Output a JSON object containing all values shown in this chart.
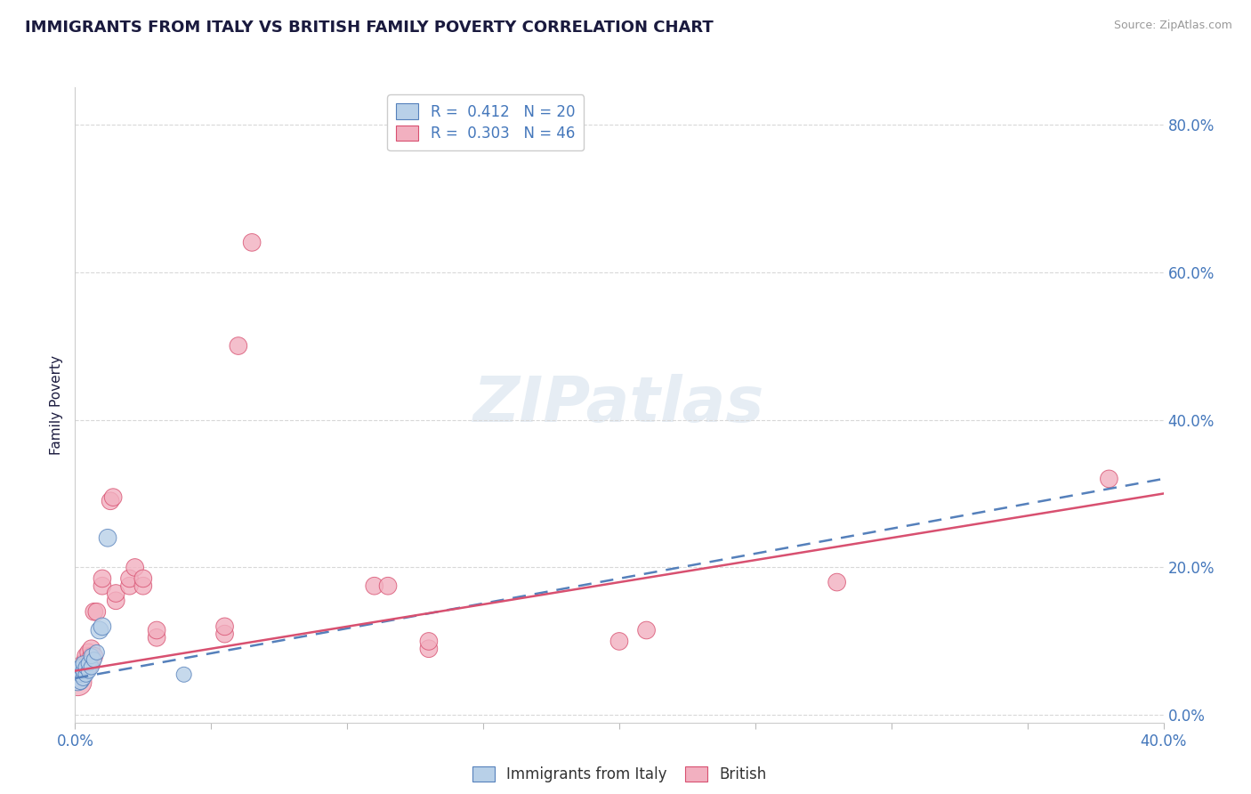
{
  "title": "IMMIGRANTS FROM ITALY VS BRITISH FAMILY POVERTY CORRELATION CHART",
  "source": "Source: ZipAtlas.com",
  "ylabel": "Family Poverty",
  "legend_blue_r": "R =  0.412",
  "legend_blue_n": "N = 20",
  "legend_pink_r": "R =  0.303",
  "legend_pink_n": "N = 46",
  "blue_color": "#b8d0e8",
  "pink_color": "#f2b0c0",
  "blue_line_color": "#5580bb",
  "pink_line_color": "#d85070",
  "watermark": "ZIPatlas",
  "blue_scatter": [
    [
      0.001,
      0.05
    ],
    [
      0.001,
      0.06
    ],
    [
      0.002,
      0.045
    ],
    [
      0.002,
      0.055
    ],
    [
      0.002,
      0.065
    ],
    [
      0.003,
      0.05
    ],
    [
      0.003,
      0.06
    ],
    [
      0.003,
      0.07
    ],
    [
      0.004,
      0.055
    ],
    [
      0.004,
      0.065
    ],
    [
      0.005,
      0.06
    ],
    [
      0.005,
      0.07
    ],
    [
      0.006,
      0.065
    ],
    [
      0.006,
      0.08
    ],
    [
      0.007,
      0.075
    ],
    [
      0.008,
      0.085
    ],
    [
      0.009,
      0.115
    ],
    [
      0.01,
      0.12
    ],
    [
      0.012,
      0.24
    ],
    [
      0.04,
      0.055
    ]
  ],
  "blue_sizes": [
    400,
    200,
    150,
    150,
    150,
    150,
    150,
    150,
    150,
    150,
    150,
    150,
    150,
    150,
    150,
    150,
    200,
    200,
    200,
    150
  ],
  "pink_scatter": [
    [
      0.001,
      0.045
    ],
    [
      0.001,
      0.055
    ],
    [
      0.001,
      0.06
    ],
    [
      0.002,
      0.05
    ],
    [
      0.002,
      0.06
    ],
    [
      0.002,
      0.065
    ],
    [
      0.003,
      0.055
    ],
    [
      0.003,
      0.065
    ],
    [
      0.003,
      0.07
    ],
    [
      0.004,
      0.06
    ],
    [
      0.004,
      0.07
    ],
    [
      0.004,
      0.08
    ],
    [
      0.005,
      0.065
    ],
    [
      0.005,
      0.075
    ],
    [
      0.005,
      0.085
    ],
    [
      0.006,
      0.07
    ],
    [
      0.006,
      0.08
    ],
    [
      0.006,
      0.09
    ],
    [
      0.007,
      0.08
    ],
    [
      0.007,
      0.14
    ],
    [
      0.008,
      0.14
    ],
    [
      0.01,
      0.175
    ],
    [
      0.01,
      0.185
    ],
    [
      0.013,
      0.29
    ],
    [
      0.014,
      0.295
    ],
    [
      0.015,
      0.155
    ],
    [
      0.015,
      0.165
    ],
    [
      0.02,
      0.175
    ],
    [
      0.02,
      0.185
    ],
    [
      0.022,
      0.2
    ],
    [
      0.025,
      0.175
    ],
    [
      0.025,
      0.185
    ],
    [
      0.03,
      0.105
    ],
    [
      0.03,
      0.115
    ],
    [
      0.055,
      0.11
    ],
    [
      0.055,
      0.12
    ],
    [
      0.06,
      0.5
    ],
    [
      0.065,
      0.64
    ],
    [
      0.11,
      0.175
    ],
    [
      0.115,
      0.175
    ],
    [
      0.13,
      0.09
    ],
    [
      0.13,
      0.1
    ],
    [
      0.2,
      0.1
    ],
    [
      0.21,
      0.115
    ],
    [
      0.28,
      0.18
    ],
    [
      0.38,
      0.32
    ]
  ],
  "pink_sizes": [
    500,
    200,
    200,
    200,
    200,
    200,
    200,
    200,
    200,
    200,
    200,
    200,
    200,
    200,
    200,
    200,
    200,
    200,
    200,
    200,
    200,
    200,
    200,
    200,
    200,
    200,
    200,
    200,
    200,
    200,
    200,
    200,
    200,
    200,
    200,
    200,
    200,
    200,
    200,
    200,
    200,
    200,
    200,
    200,
    200,
    200
  ],
  "xlim": [
    0.0,
    0.4
  ],
  "ylim": [
    -0.01,
    0.85
  ],
  "yticks": [
    0.0,
    0.2,
    0.4,
    0.6,
    0.8
  ],
  "xtick_labels_show": [
    true,
    false,
    false,
    false,
    false,
    false,
    false,
    false,
    true
  ],
  "title_color": "#1a1a3e",
  "axis_label_color": "#4477bb",
  "background_color": "#ffffff",
  "grid_color": "#d8d8d8"
}
